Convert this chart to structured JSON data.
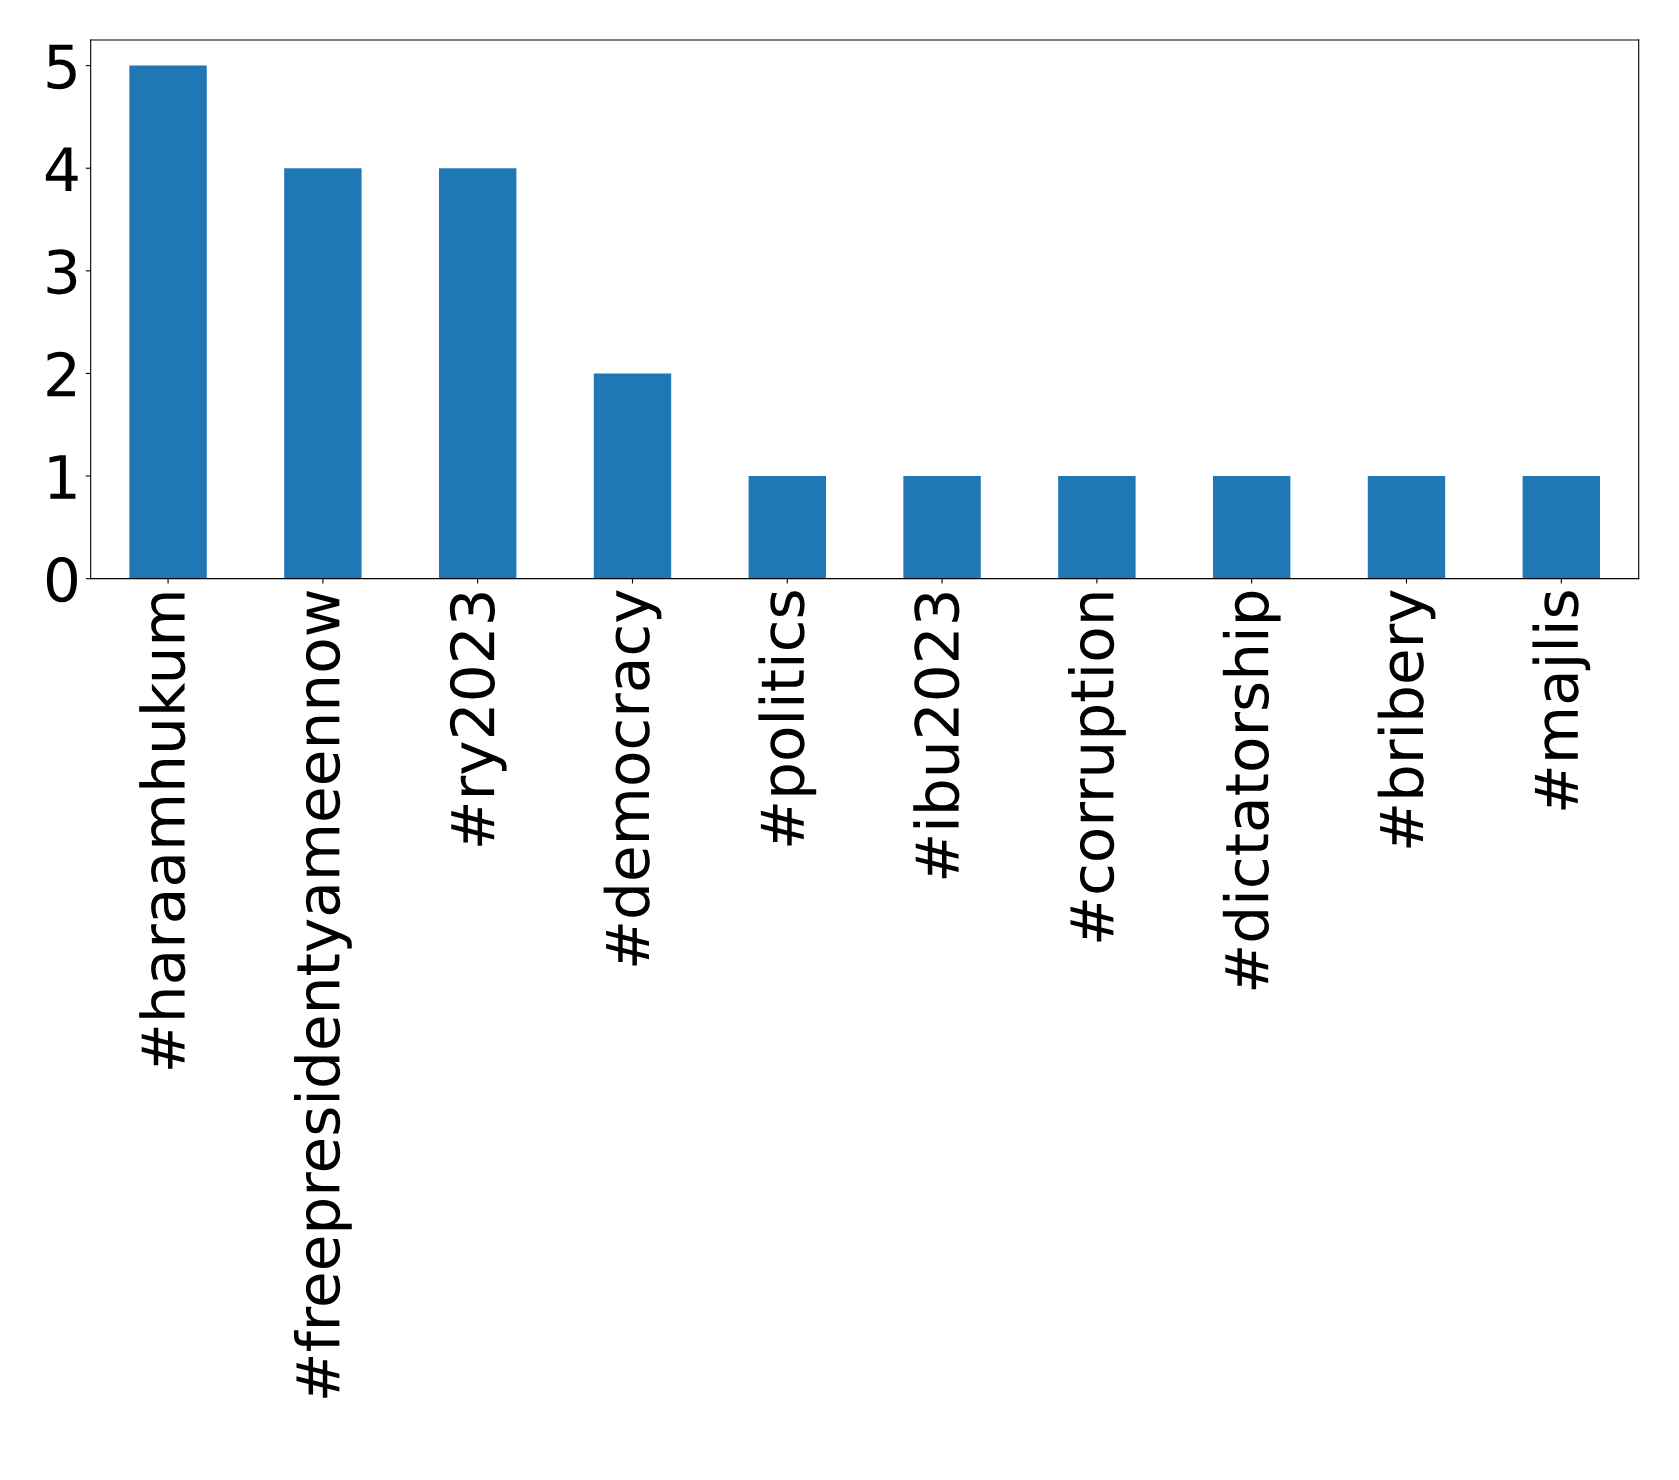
{
  "chart_data": {
    "type": "bar",
    "categories": [
      "#haraamhukum",
      "#freepresidentyameennow",
      "#ry2023",
      "#democracy",
      "#politics",
      "#ibu2023",
      "#corruption",
      "#dictatorship",
      "#bribery",
      "#majlis"
    ],
    "values": [
      5,
      4,
      4,
      2,
      1,
      1,
      1,
      1,
      1,
      1
    ],
    "color": "#1f77b4",
    "ylim": [
      0,
      5.25
    ],
    "yticks": [
      0,
      1,
      2,
      3,
      4,
      5
    ],
    "grid": false,
    "legend": false
  }
}
